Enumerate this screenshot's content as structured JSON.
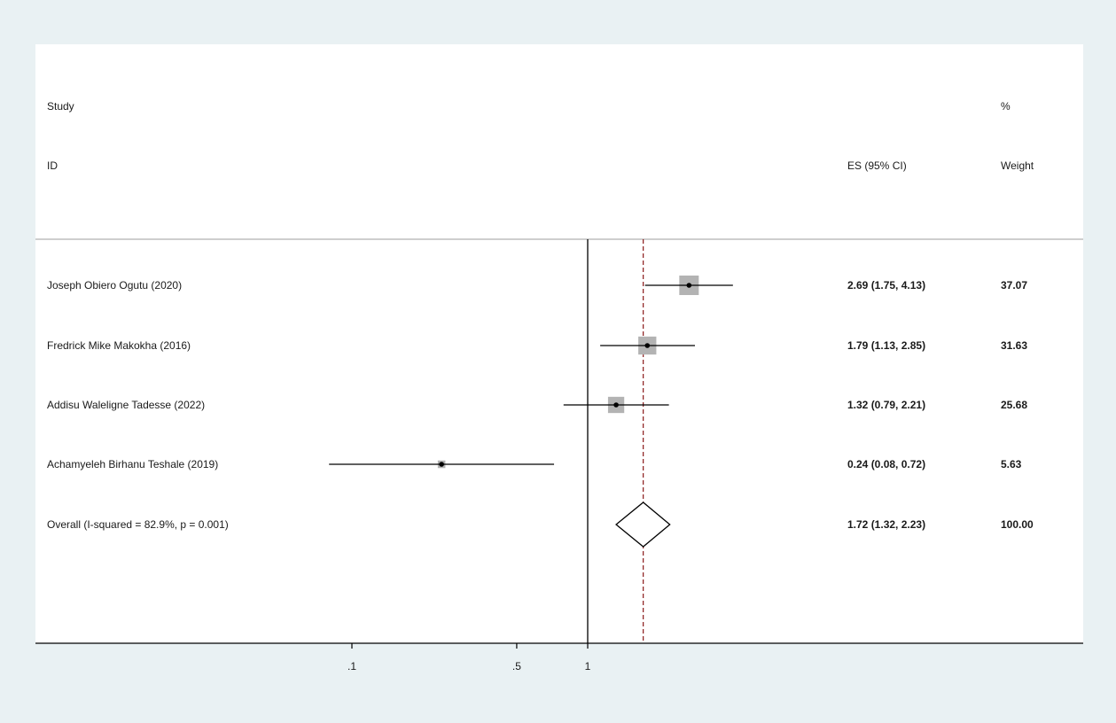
{
  "chart_data": {
    "type": "forest",
    "header": {
      "study_line1": "Study",
      "study_line2": "ID",
      "es_label": "ES (95% CI)",
      "weight_line1": "%",
      "weight_line2": "Weight"
    },
    "studies": [
      {
        "label": "Joseph Obiero Ogutu (2020)",
        "es": 2.69,
        "lo": 1.75,
        "hi": 4.13,
        "es_text": "2.69 (1.75, 4.13)",
        "weight": 37.07,
        "weight_text": "37.07"
      },
      {
        "label": "Fredrick Mike Makokha (2016)",
        "es": 1.79,
        "lo": 1.13,
        "hi": 2.85,
        "es_text": "1.79 (1.13, 2.85)",
        "weight": 31.63,
        "weight_text": "31.63"
      },
      {
        "label": "Addisu Waleligne Tadesse (2022)",
        "es": 1.32,
        "lo": 0.79,
        "hi": 2.21,
        "es_text": "1.32 (0.79, 2.21)",
        "weight": 25.68,
        "weight_text": "25.68"
      },
      {
        "label": "Achamyeleh Birhanu Teshale (2019)",
        "es": 0.24,
        "lo": 0.08,
        "hi": 0.72,
        "es_text": "0.24 (0.08, 0.72)",
        "weight": 5.63,
        "weight_text": "5.63"
      }
    ],
    "overall": {
      "label": "Overall  (I-squared = 82.9%, p = 0.001)",
      "es": 1.72,
      "lo": 1.32,
      "hi": 2.23,
      "es_text": "1.72 (1.32, 2.23)",
      "weight_text": "100.00"
    },
    "x_ticks": [
      {
        "value": 0.1,
        "label": ".1"
      },
      {
        "value": 0.5,
        "label": ".5"
      },
      {
        "value": 1,
        "label": "1"
      }
    ],
    "x_scale": "log",
    "null_line": 1,
    "colors": {
      "box": "#b3b3b3",
      "line": "#000000",
      "overall_line": "#8b1a1a",
      "background": "#e9f1f3"
    }
  }
}
